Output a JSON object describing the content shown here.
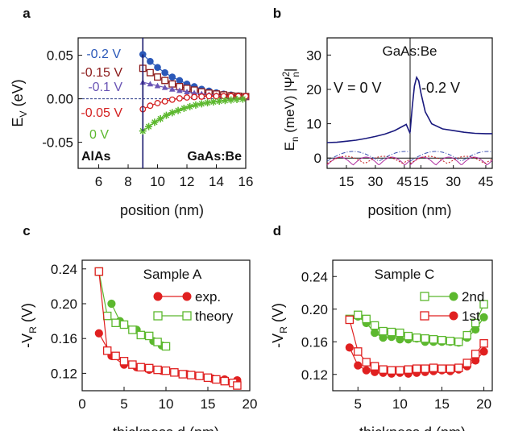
{
  "panel_letters": [
    "a",
    "b",
    "c",
    "d"
  ],
  "chart_data": [
    {
      "panel": "a",
      "type": "line",
      "xlabel": "position (nm)",
      "ylabel_main": "E",
      "ylabel_sub": "V",
      "ylabel_unit": " (eV)",
      "xlim": [
        4.6,
        16
      ],
      "ylim": [
        -0.08,
        0.07
      ],
      "xticks": [
        6,
        8,
        10,
        12,
        14,
        16
      ],
      "yticks": [
        -0.05,
        0.0,
        0.05
      ],
      "ytick_labels": [
        "-0.05",
        "0.00",
        "0.05"
      ],
      "region_labels": [
        "AlAs",
        "GaAs:Be"
      ],
      "interface_x": 9,
      "dashed_zero": true,
      "series": [
        {
          "name": "-0.2 V",
          "color": "#2b58b8",
          "marker": "circle-filled",
          "x": [
            9,
            9.5,
            10,
            10.5,
            11,
            11.5,
            12,
            12.5,
            13,
            13.5,
            14,
            14.5,
            15,
            15.5,
            16
          ],
          "y": [
            0.051,
            0.043,
            0.036,
            0.03,
            0.025,
            0.021,
            0.017,
            0.014,
            0.011,
            0.009,
            0.007,
            0.0055,
            0.0045,
            0.0035,
            0.003
          ]
        },
        {
          "name": "-0.15 V",
          "color": "#8b1a1a",
          "marker": "square-open",
          "x": [
            9,
            9.5,
            10,
            10.5,
            11,
            11.5,
            12,
            12.5,
            13,
            13.5,
            14,
            14.5,
            15,
            15.5,
            16
          ],
          "y": [
            0.035,
            0.03,
            0.025,
            0.021,
            0.017,
            0.014,
            0.012,
            0.01,
            0.008,
            0.0065,
            0.0055,
            0.0045,
            0.0035,
            0.003,
            0.0025
          ]
        },
        {
          "name": "-0.1 V",
          "color": "#6a55b5",
          "marker": "triangle-filled",
          "x": [
            9,
            9.5,
            10,
            10.5,
            11,
            11.5,
            12,
            12.5,
            13,
            13.5,
            14,
            14.5,
            15,
            15.5,
            16
          ],
          "y": [
            0.019,
            0.017,
            0.015,
            0.013,
            0.011,
            0.0095,
            0.008,
            0.0068,
            0.0057,
            0.0048,
            0.004,
            0.0034,
            0.0028,
            0.0024,
            0.002
          ]
        },
        {
          "name": "-0.05 V",
          "color": "#d42020",
          "marker": "circle-open",
          "x": [
            9,
            9.5,
            10,
            10.5,
            11,
            11.5,
            12,
            12.5,
            13,
            13.5,
            14,
            14.5,
            15,
            15.5,
            16
          ],
          "y": [
            -0.012,
            -0.008,
            -0.005,
            -0.003,
            -0.001,
            0.0005,
            0.0015,
            0.002,
            0.0025,
            0.003,
            0.003,
            0.003,
            0.003,
            0.003,
            0.003
          ]
        },
        {
          "name": "0 V",
          "color": "#5cb82e",
          "marker": "star",
          "x": [
            9,
            9.4,
            9.8,
            10.2,
            10.6,
            11,
            11.4,
            11.8,
            12.2,
            12.6,
            13,
            13.4,
            13.8,
            14.2,
            14.6,
            15,
            15.4,
            15.8
          ],
          "y": [
            -0.037,
            -0.032,
            -0.027,
            -0.023,
            -0.019,
            -0.016,
            -0.0135,
            -0.011,
            -0.009,
            -0.0072,
            -0.0058,
            -0.0046,
            -0.0036,
            -0.0028,
            -0.002,
            -0.0014,
            -0.0008,
            -0.0004
          ]
        }
      ]
    },
    {
      "panel": "b",
      "type": "line",
      "title": "GaAs:Be",
      "xlabel": "position (nm)",
      "ylabel_main": "E",
      "ylabel_sub": "n",
      "ylabel_rest": " (meV)  |Ψ",
      "ylabel_sup": "2",
      "ylabel_sub2": "n",
      "ylabel_close": "|",
      "ylim": [
        -3,
        35
      ],
      "yticks": [
        0,
        10,
        20,
        30
      ],
      "subpanels": [
        {
          "label": "V = 0 V",
          "xlim": [
            5,
            48
          ],
          "xticks": [
            15,
            30,
            45
          ],
          "potential": {
            "x": [
              5,
              10,
              15,
              20,
              25,
              30,
              35,
              40,
              44,
              46,
              48
            ],
            "y": [
              4.5,
              4.6,
              4.9,
              5.2,
              5.7,
              6.3,
              7.0,
              8.0,
              9.2,
              9.8,
              7.2
            ]
          }
        },
        {
          "label": "-0.2 V",
          "xlim": [
            10,
            48
          ],
          "xticks": [
            15,
            30,
            45
          ],
          "potential": {
            "x": [
              10,
              11,
              12,
              13,
              14,
              15,
              17,
              20,
              25,
              30,
              35,
              40,
              45,
              48
            ],
            "y": [
              7.5,
              15,
              21,
              23.5,
              22.5,
              19,
              13.5,
              10.0,
              8.5,
              8.0,
              7.5,
              7.2,
              7.1,
              7.1
            ]
          }
        }
      ]
    },
    {
      "panel": "c",
      "type": "scatter",
      "title": "Sample A",
      "xlabel": "thickness d (nm)",
      "ylabel_main": "-V",
      "ylabel_sub": "R",
      "ylabel_unit": " (V)",
      "xlim": [
        0,
        20
      ],
      "ylim": [
        0.1,
        0.25
      ],
      "xticks": [
        0,
        5,
        10,
        15,
        20
      ],
      "yticks": [
        0.12,
        0.16,
        0.2,
        0.24
      ],
      "ytick_labels": [
        "0.12",
        "0.16",
        "0.20",
        "0.24"
      ],
      "series": [
        {
          "name": "exp.",
          "color": "#5cb82e",
          "marker": "circle-filled",
          "x": [
            3.5,
            4.5,
            6.5,
            8.5,
            9.5
          ],
          "y": [
            0.2,
            0.18,
            0.17,
            0.157,
            0.152
          ]
        },
        {
          "name": "theory",
          "color": "#5cb82e",
          "marker": "square-open",
          "x": [
            2,
            3,
            4,
            5,
            6,
            7,
            8,
            9,
            10
          ],
          "y": [
            0.237,
            0.186,
            0.178,
            0.176,
            0.17,
            0.164,
            0.163,
            0.156,
            0.151
          ]
        },
        {
          "name": "",
          "color": "#e02020",
          "marker": "circle-filled",
          "x": [
            2,
            3.5,
            5,
            6.5,
            8,
            9.5,
            11,
            12.5,
            14,
            15.5,
            17,
            18.5
          ],
          "y": [
            0.166,
            0.14,
            0.13,
            0.127,
            0.124,
            0.123,
            0.121,
            0.119,
            0.117,
            0.114,
            0.113,
            0.112
          ]
        },
        {
          "name": "",
          "color": "#e02020",
          "marker": "square-open",
          "x": [
            2,
            3,
            4,
            5,
            6,
            7,
            8,
            9,
            10,
            11,
            12,
            13,
            14,
            15,
            16,
            17,
            18,
            18.5
          ],
          "y": [
            0.237,
            0.146,
            0.14,
            0.134,
            0.13,
            0.127,
            0.126,
            0.124,
            0.123,
            0.121,
            0.119,
            0.118,
            0.117,
            0.115,
            0.113,
            0.111,
            0.109,
            0.106
          ]
        }
      ],
      "legend_labels": [
        "exp.",
        "theory"
      ]
    },
    {
      "panel": "d",
      "type": "scatter",
      "title": "Sample C",
      "xlabel": "thickness d (nm)",
      "ylabel_main": "-V",
      "ylabel_sub": "R",
      "ylabel_unit": " (V)",
      "xlim": [
        2,
        21
      ],
      "ylim": [
        0.1,
        0.26
      ],
      "xticks": [
        5,
        10,
        15,
        20
      ],
      "yticks": [
        0.12,
        0.16,
        0.2,
        0.24
      ],
      "ytick_labels": [
        "0.12",
        "0.16",
        "0.20",
        "0.24"
      ],
      "series": [
        {
          "name": "2nd",
          "color": "#5cb82e",
          "marker": "circle-filled",
          "x": [
            5,
            6,
            7,
            8,
            9,
            10,
            11,
            12,
            13,
            14,
            15,
            16,
            17,
            18,
            19,
            20
          ],
          "y": [
            0.191,
            0.183,
            0.171,
            0.165,
            0.166,
            0.163,
            0.163,
            0.164,
            0.16,
            0.16,
            0.16,
            0.16,
            0.159,
            0.165,
            0.175,
            0.19
          ]
        },
        {
          "name": "",
          "color": "#5cb82e",
          "marker": "square-open",
          "x": [
            4,
            5,
            6,
            7,
            8,
            9,
            10,
            11,
            12,
            13,
            14,
            15,
            16,
            17,
            18,
            19,
            20
          ],
          "y": [
            0.188,
            0.193,
            0.188,
            0.18,
            0.173,
            0.172,
            0.171,
            0.167,
            0.165,
            0.164,
            0.163,
            0.162,
            0.161,
            0.16,
            0.168,
            0.183,
            0.206
          ]
        },
        {
          "name": "1st",
          "color": "#e02020",
          "marker": "circle-filled",
          "x": [
            4,
            5,
            6,
            7,
            8,
            9,
            10,
            11,
            12,
            13,
            14,
            15,
            16,
            17,
            18,
            19,
            20
          ],
          "y": [
            0.153,
            0.131,
            0.125,
            0.123,
            0.122,
            0.121,
            0.122,
            0.121,
            0.122,
            0.123,
            0.124,
            0.125,
            0.124,
            0.126,
            0.13,
            0.137,
            0.148
          ]
        },
        {
          "name": "",
          "color": "#e02020",
          "marker": "square-open",
          "x": [
            4,
            5,
            6,
            7,
            8,
            9,
            10,
            11,
            12,
            13,
            14,
            15,
            16,
            17,
            18,
            19,
            20
          ],
          "y": [
            0.187,
            0.148,
            0.135,
            0.13,
            0.126,
            0.125,
            0.125,
            0.126,
            0.127,
            0.127,
            0.128,
            0.127,
            0.127,
            0.128,
            0.134,
            0.145,
            0.158
          ]
        }
      ],
      "legend_labels": [
        "2nd",
        "1st"
      ]
    }
  ]
}
